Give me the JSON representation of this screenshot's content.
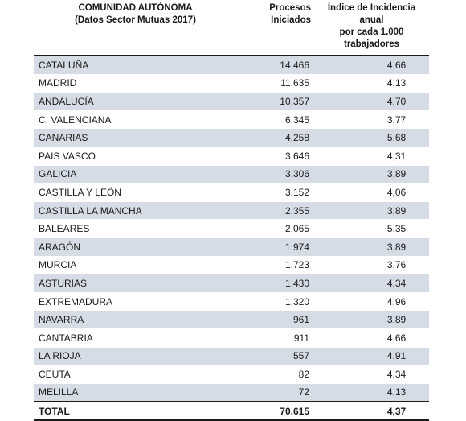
{
  "header": {
    "col1_title": "COMUNIDAD AUTÓNOMA",
    "col1_subtitle": "(Datos Sector Mutuas 2017)",
    "col2_line1": "Procesos",
    "col2_line2": "Iniciados",
    "col3_line1": "Índice de Incidencia anual",
    "col3_line2": "por cada 1.000 trabajadores"
  },
  "rows": [
    {
      "region": "CATALUÑA",
      "procesos": "14.466",
      "indice": "4,66"
    },
    {
      "region": "MADRID",
      "procesos": "11.635",
      "indice": "4,13"
    },
    {
      "region": "ANDALUCÍA",
      "procesos": "10.357",
      "indice": "4,70"
    },
    {
      "region": "C. VALENCIANA",
      "procesos": "6.345",
      "indice": "3,77"
    },
    {
      "region": "CANARIAS",
      "procesos": "4.258",
      "indice": "5,68"
    },
    {
      "region": "PAIS VASCO",
      "procesos": "3.646",
      "indice": "4,31"
    },
    {
      "region": "GALICIA",
      "procesos": "3.306",
      "indice": "3,89"
    },
    {
      "region": "CASTILLA Y LEÓN",
      "procesos": "3.152",
      "indice": "4,06"
    },
    {
      "region": "CASTILLA LA MANCHA",
      "procesos": "2.355",
      "indice": "3,89"
    },
    {
      "region": "BALEARES",
      "procesos": "2.065",
      "indice": "5,35"
    },
    {
      "region": "ARAGÓN",
      "procesos": "1.974",
      "indice": "3,89"
    },
    {
      "region": "MURCIA",
      "procesos": "1.723",
      "indice": "3,76"
    },
    {
      "region": "ASTURIAS",
      "procesos": "1.430",
      "indice": "4,34"
    },
    {
      "region": "EXTREMADURA",
      "procesos": "1.320",
      "indice": "4,96"
    },
    {
      "region": "NAVARRA",
      "procesos": "961",
      "indice": "3,89"
    },
    {
      "region": "CANTABRIA",
      "procesos": "911",
      "indice": "4,66"
    },
    {
      "region": "LA RIOJA",
      "procesos": "557",
      "indice": "4,91"
    },
    {
      "region": "CEUTA",
      "procesos": "82",
      "indice": "4,34"
    },
    {
      "region": "MELILLA",
      "procesos": "72",
      "indice": "4,13"
    }
  ],
  "total": {
    "region": "TOTAL",
    "procesos": "70.615",
    "indice": "4,37"
  },
  "colors": {
    "shaded_row": "#d6dce5",
    "rule": "#1a1a1a"
  }
}
